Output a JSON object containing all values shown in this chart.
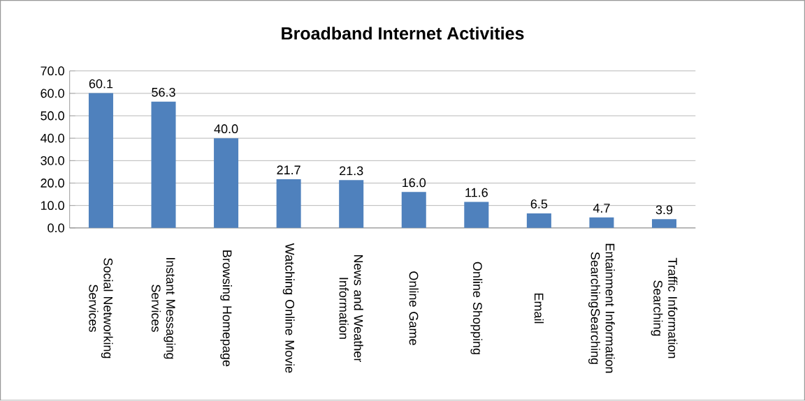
{
  "chart_data": {
    "type": "bar",
    "title": "Broadband Internet Activities",
    "categories": [
      "Social Networking Services",
      "Instant Messaging Services",
      "Browsing Homepage",
      "Watching Online Movie",
      "News and Weather Information",
      "Online Game",
      "Online Shopping",
      "Email",
      "Entainment Information SearchingSearching",
      "Traffic Information Searching"
    ],
    "values": [
      60.1,
      56.3,
      40.0,
      21.7,
      21.3,
      16.0,
      11.6,
      6.5,
      4.7,
      3.9
    ],
    "value_labels": [
      "60.1",
      "56.3",
      "40.0",
      "21.7",
      "21.3",
      "16.0",
      "11.6",
      "6.5",
      "4.7",
      "3.9"
    ],
    "color": "#4f81bd",
    "ylim": [
      0,
      70
    ],
    "yticks": [
      {
        "value": 0,
        "label": "0.0"
      },
      {
        "value": 10,
        "label": "10.0"
      },
      {
        "value": 20,
        "label": "20.0"
      },
      {
        "value": 30,
        "label": "30.0"
      },
      {
        "value": 40,
        "label": "40.0"
      },
      {
        "value": 50,
        "label": "50.0"
      },
      {
        "value": 60,
        "label": "60.0"
      },
      {
        "value": 70,
        "label": "70.0"
      }
    ],
    "grid": "y"
  }
}
